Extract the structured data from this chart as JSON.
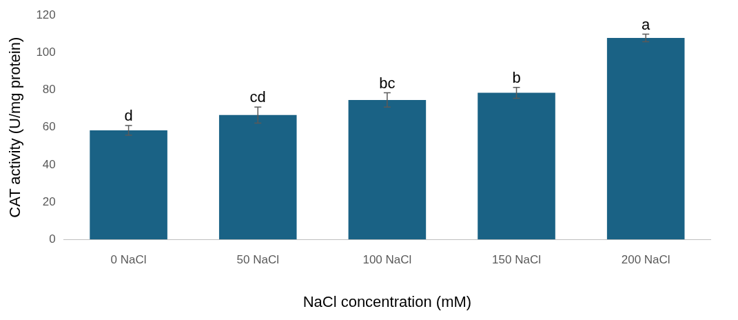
{
  "chart_data": {
    "type": "bar",
    "xlabel": "NaCl concentration (mM)",
    "ylabel": "CAT activity (U/mg protein)",
    "categories": [
      "0 NaCl",
      "50 NaCl",
      "100 NaCl",
      "150 NaCl",
      "200 NaCl"
    ],
    "values": [
      58.4,
      66.6,
      74.7,
      78.5,
      107.9
    ],
    "errors": [
      2.6,
      4.3,
      3.8,
      2.9,
      2
    ],
    "color": "#1a6285",
    "ylim": [
      0,
      120
    ],
    "yticks": [
      0,
      20,
      40,
      60,
      80,
      100,
      120
    ],
    "grid": false,
    "legend": false,
    "annotations": [
      {
        "text": "d",
        "x": "0 NaCl",
        "y": 61
      },
      {
        "text": "cd",
        "x": "50 NaCl",
        "y": 70.9
      },
      {
        "text": "bc",
        "x": "100 NaCl",
        "y": 78.5
      },
      {
        "text": "b",
        "x": "150 NaCl",
        "y": 81.4
      },
      {
        "text": "a",
        "x": "200 NaCl",
        "y": 109.9
      }
    ]
  }
}
